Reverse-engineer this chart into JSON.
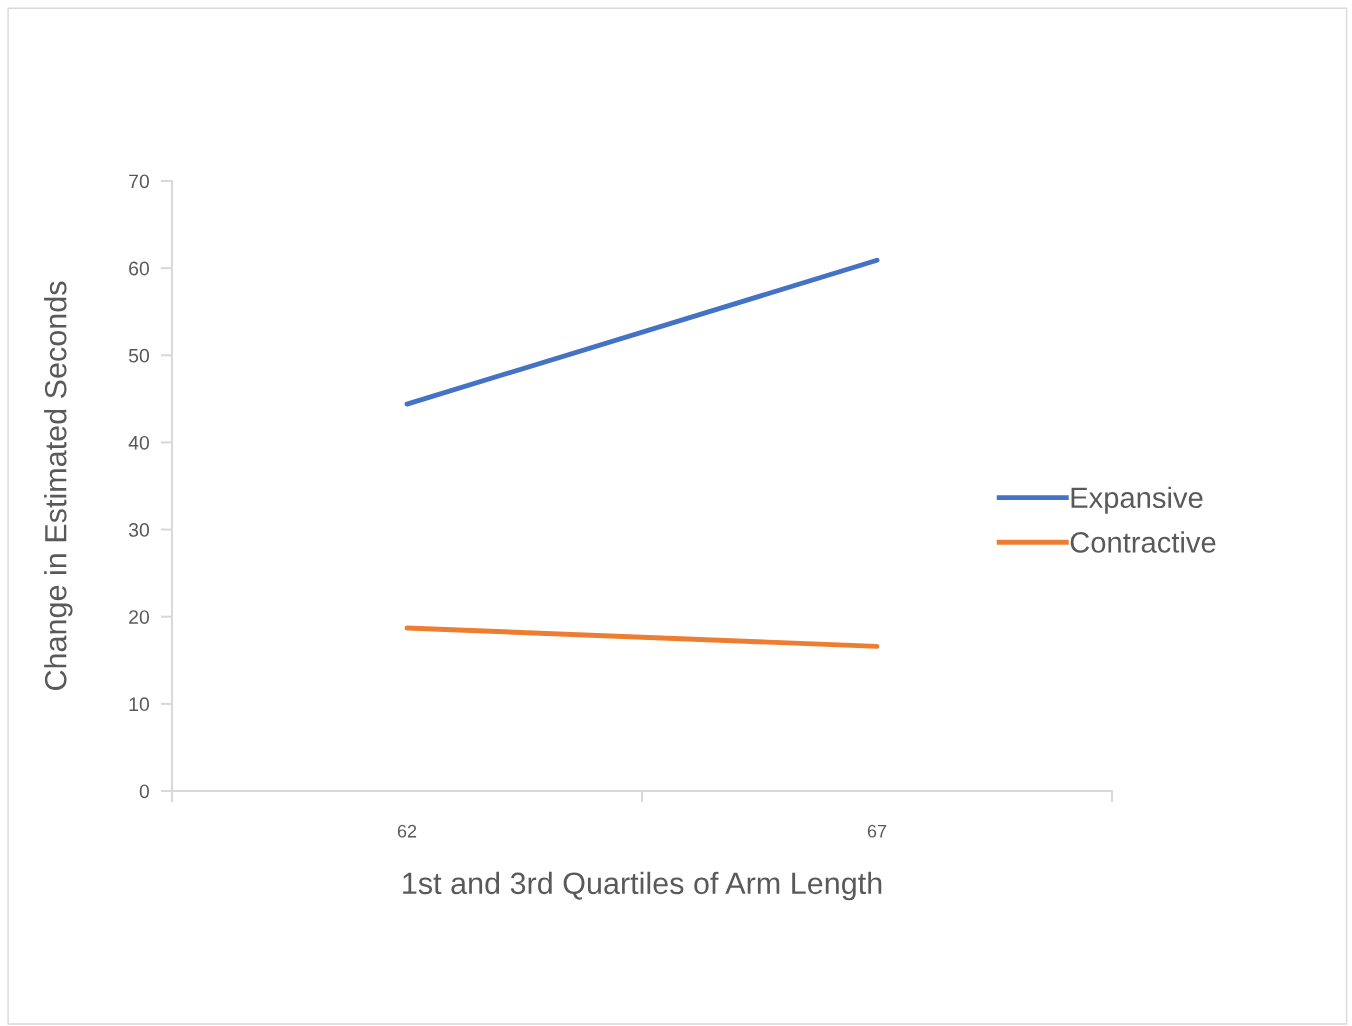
{
  "chart_data": {
    "type": "line",
    "xlabel": "1st and 3rd Quartiles of Arm Length",
    "ylabel": "Change in Estimated Seconds",
    "x": [
      62,
      67
    ],
    "xlim": [
      59.5,
      69.5
    ],
    "xticks": [
      {
        "value": 59.5,
        "label": null
      },
      62,
      {
        "value": 64.5,
        "label": null
      },
      67,
      {
        "value": 69.5,
        "label": null
      }
    ],
    "series": [
      {
        "name": "Expansive",
        "color": "#4472c4",
        "values": [
          44.4,
          60.9
        ]
      },
      {
        "name": "Contractive",
        "color": "#ed7d31",
        "values": [
          18.7,
          16.6
        ]
      }
    ],
    "ylim": [
      0,
      70
    ],
    "yticks": [
      0,
      10,
      20,
      30,
      40,
      50,
      60,
      70
    ],
    "grid": false,
    "legend": "right",
    "marker": "none",
    "line_style": "solid"
  }
}
